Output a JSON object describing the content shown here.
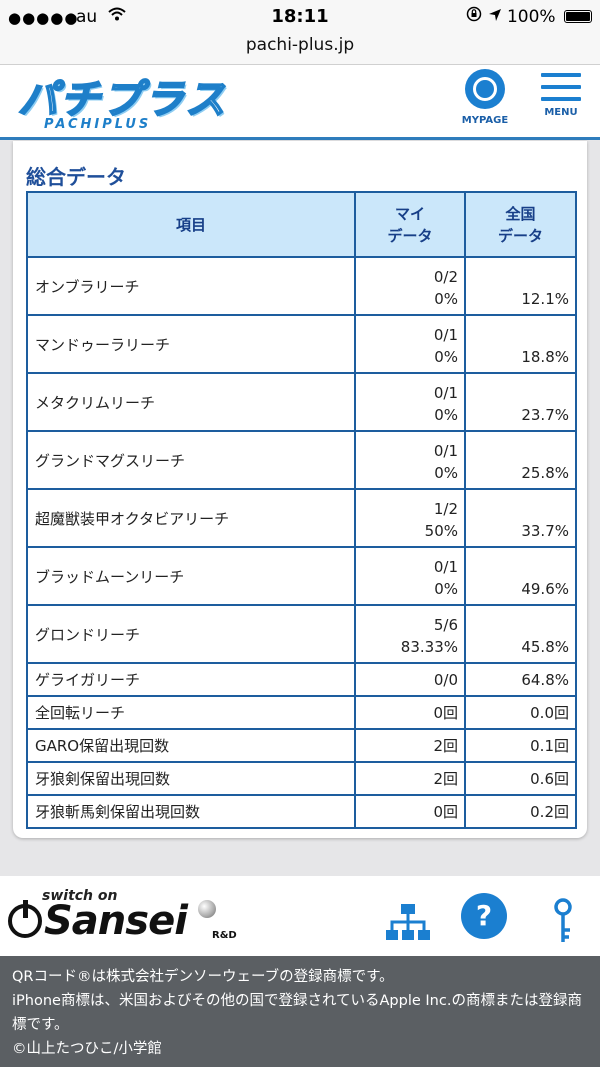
{
  "status_bar": {
    "signal": "●●●●●",
    "carrier": "au",
    "time": "18:11",
    "battery": "100%"
  },
  "browser": {
    "url": "pachi-plus.jp"
  },
  "header": {
    "logo_jp": "パチプラス",
    "logo_en": "PACHIPLUS",
    "mypage_label": "MYPAGE",
    "menu_label": "MENU"
  },
  "section": {
    "title": "総合データ",
    "columns": {
      "item": "項目",
      "mine_l1": "マイ",
      "mine_l2": "データ",
      "nat_l1": "全国",
      "nat_l2": "データ"
    },
    "rows": [
      {
        "name": "オンブラリーチ",
        "mine_count": "0/2",
        "mine_pct": "0%",
        "national": "12.1%"
      },
      {
        "name": "マンドゥーラリーチ",
        "mine_count": "0/1",
        "mine_pct": "0%",
        "national": "18.8%"
      },
      {
        "name": "メタクリムリーチ",
        "mine_count": "0/1",
        "mine_pct": "0%",
        "national": "23.7%"
      },
      {
        "name": "グランドマグスリーチ",
        "mine_count": "0/1",
        "mine_pct": "0%",
        "national": "25.8%"
      },
      {
        "name": "超魔獣装甲オクタビアリーチ",
        "mine_count": "1/2",
        "mine_pct": "50%",
        "national": "33.7%"
      },
      {
        "name": "ブラッドムーンリーチ",
        "mine_count": "0/1",
        "mine_pct": "0%",
        "national": "49.6%"
      },
      {
        "name": "グロンドリーチ",
        "mine_count": "5/6",
        "mine_pct": "83.33%",
        "national": "45.8%"
      }
    ],
    "short_rows": [
      {
        "name": "ゲライガリーチ",
        "mine": "0/0",
        "national": "64.8%"
      },
      {
        "name": "全回転リーチ",
        "mine": "0回",
        "national": "0.0回"
      },
      {
        "name": "GARO保留出現回数",
        "mine": "2回",
        "national": "0.1回"
      },
      {
        "name": "牙狼剣保留出現回数",
        "mine": "2回",
        "national": "0.6回"
      },
      {
        "name": "牙狼斬馬剣保留出現回数",
        "mine": "0回",
        "national": "0.2回"
      }
    ]
  },
  "footer": {
    "brand_tagline": "switch on",
    "brand_name": "Sansei",
    "brand_suffix": "R&D",
    "help_glyph": "?"
  },
  "legal": {
    "line1": "QRコード®は株式会社デンソーウェーブの登録商標です。",
    "line2": "iPhone商標は、米国およびその他の国で登録されているApple Inc.の商標または登録商標です。",
    "line3": "©山上たつひこ/小学館"
  }
}
